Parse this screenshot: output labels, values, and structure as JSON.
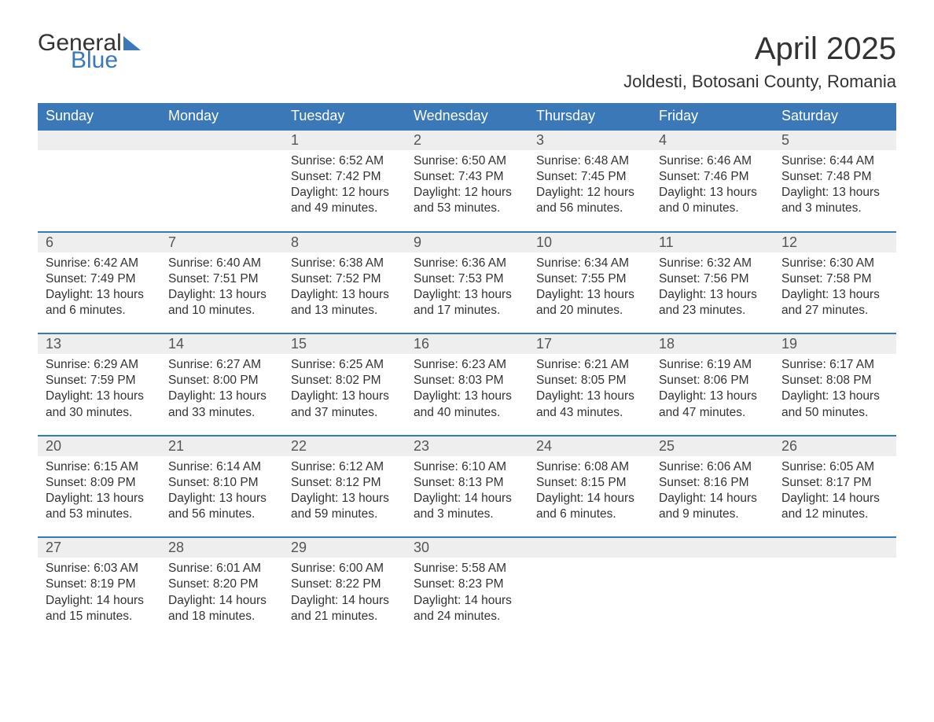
{
  "logo": {
    "word1": "General",
    "word2": "Blue"
  },
  "title": "April 2025",
  "location": "Joldesti, Botosani County, Romania",
  "colors": {
    "header_bg": "#3a78b8",
    "header_text": "#ffffff",
    "daynum_bg": "#eeeeee",
    "row_border": "#3a78b8",
    "body_text": "#333333",
    "background": "#ffffff"
  },
  "typography": {
    "title_fontsize": 40,
    "location_fontsize": 22,
    "header_fontsize": 18,
    "cell_fontsize": 15.5
  },
  "day_headers": [
    "Sunday",
    "Monday",
    "Tuesday",
    "Wednesday",
    "Thursday",
    "Friday",
    "Saturday"
  ],
  "weeks": [
    [
      null,
      null,
      {
        "n": "1",
        "sunrise": "6:52 AM",
        "sunset": "7:42 PM",
        "daylight": "12 hours and 49 minutes."
      },
      {
        "n": "2",
        "sunrise": "6:50 AM",
        "sunset": "7:43 PM",
        "daylight": "12 hours and 53 minutes."
      },
      {
        "n": "3",
        "sunrise": "6:48 AM",
        "sunset": "7:45 PM",
        "daylight": "12 hours and 56 minutes."
      },
      {
        "n": "4",
        "sunrise": "6:46 AM",
        "sunset": "7:46 PM",
        "daylight": "13 hours and 0 minutes."
      },
      {
        "n": "5",
        "sunrise": "6:44 AM",
        "sunset": "7:48 PM",
        "daylight": "13 hours and 3 minutes."
      }
    ],
    [
      {
        "n": "6",
        "sunrise": "6:42 AM",
        "sunset": "7:49 PM",
        "daylight": "13 hours and 6 minutes."
      },
      {
        "n": "7",
        "sunrise": "6:40 AM",
        "sunset": "7:51 PM",
        "daylight": "13 hours and 10 minutes."
      },
      {
        "n": "8",
        "sunrise": "6:38 AM",
        "sunset": "7:52 PM",
        "daylight": "13 hours and 13 minutes."
      },
      {
        "n": "9",
        "sunrise": "6:36 AM",
        "sunset": "7:53 PM",
        "daylight": "13 hours and 17 minutes."
      },
      {
        "n": "10",
        "sunrise": "6:34 AM",
        "sunset": "7:55 PM",
        "daylight": "13 hours and 20 minutes."
      },
      {
        "n": "11",
        "sunrise": "6:32 AM",
        "sunset": "7:56 PM",
        "daylight": "13 hours and 23 minutes."
      },
      {
        "n": "12",
        "sunrise": "6:30 AM",
        "sunset": "7:58 PM",
        "daylight": "13 hours and 27 minutes."
      }
    ],
    [
      {
        "n": "13",
        "sunrise": "6:29 AM",
        "sunset": "7:59 PM",
        "daylight": "13 hours and 30 minutes."
      },
      {
        "n": "14",
        "sunrise": "6:27 AM",
        "sunset": "8:00 PM",
        "daylight": "13 hours and 33 minutes."
      },
      {
        "n": "15",
        "sunrise": "6:25 AM",
        "sunset": "8:02 PM",
        "daylight": "13 hours and 37 minutes."
      },
      {
        "n": "16",
        "sunrise": "6:23 AM",
        "sunset": "8:03 PM",
        "daylight": "13 hours and 40 minutes."
      },
      {
        "n": "17",
        "sunrise": "6:21 AM",
        "sunset": "8:05 PM",
        "daylight": "13 hours and 43 minutes."
      },
      {
        "n": "18",
        "sunrise": "6:19 AM",
        "sunset": "8:06 PM",
        "daylight": "13 hours and 47 minutes."
      },
      {
        "n": "19",
        "sunrise": "6:17 AM",
        "sunset": "8:08 PM",
        "daylight": "13 hours and 50 minutes."
      }
    ],
    [
      {
        "n": "20",
        "sunrise": "6:15 AM",
        "sunset": "8:09 PM",
        "daylight": "13 hours and 53 minutes."
      },
      {
        "n": "21",
        "sunrise": "6:14 AM",
        "sunset": "8:10 PM",
        "daylight": "13 hours and 56 minutes."
      },
      {
        "n": "22",
        "sunrise": "6:12 AM",
        "sunset": "8:12 PM",
        "daylight": "13 hours and 59 minutes."
      },
      {
        "n": "23",
        "sunrise": "6:10 AM",
        "sunset": "8:13 PM",
        "daylight": "14 hours and 3 minutes."
      },
      {
        "n": "24",
        "sunrise": "6:08 AM",
        "sunset": "8:15 PM",
        "daylight": "14 hours and 6 minutes."
      },
      {
        "n": "25",
        "sunrise": "6:06 AM",
        "sunset": "8:16 PM",
        "daylight": "14 hours and 9 minutes."
      },
      {
        "n": "26",
        "sunrise": "6:05 AM",
        "sunset": "8:17 PM",
        "daylight": "14 hours and 12 minutes."
      }
    ],
    [
      {
        "n": "27",
        "sunrise": "6:03 AM",
        "sunset": "8:19 PM",
        "daylight": "14 hours and 15 minutes."
      },
      {
        "n": "28",
        "sunrise": "6:01 AM",
        "sunset": "8:20 PM",
        "daylight": "14 hours and 18 minutes."
      },
      {
        "n": "29",
        "sunrise": "6:00 AM",
        "sunset": "8:22 PM",
        "daylight": "14 hours and 21 minutes."
      },
      {
        "n": "30",
        "sunrise": "5:58 AM",
        "sunset": "8:23 PM",
        "daylight": "14 hours and 24 minutes."
      },
      null,
      null,
      null
    ]
  ],
  "labels": {
    "sunrise": "Sunrise: ",
    "sunset": "Sunset: ",
    "daylight": "Daylight: "
  }
}
